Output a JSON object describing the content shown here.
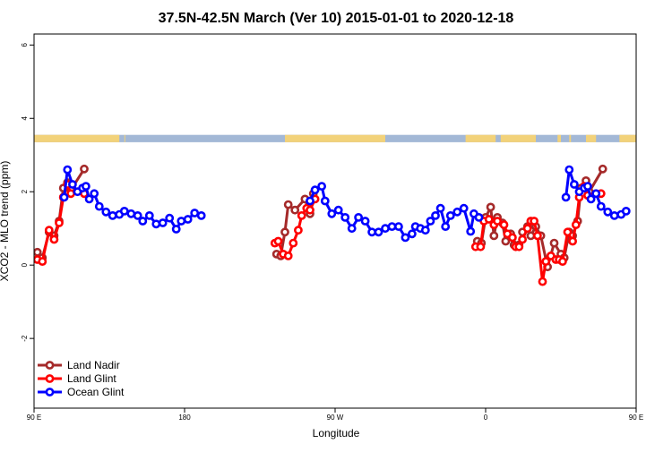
{
  "chart_data": {
    "type": "line",
    "title": "37.5N-42.5N March (Ver 10)   2015-01-01 to 2020-12-18",
    "xlabel": "Longitude",
    "ylabel": "XCO2 - MLO trend (ppm)",
    "xlim": [
      90,
      450
    ],
    "ylim": [
      -3.9,
      6.3
    ],
    "x_ticks": [
      {
        "value": 90,
        "label": "90 E"
      },
      {
        "value": 180,
        "label": "180"
      },
      {
        "value": 270,
        "label": "90 W"
      },
      {
        "value": 360,
        "label": "0"
      },
      {
        "value": 450,
        "label": "90 E"
      },
      {
        "value": 540,
        "label": "180"
      }
    ],
    "y_ticks": [
      {
        "value": -2,
        "label": "-2"
      },
      {
        "value": 0,
        "label": "0"
      },
      {
        "value": 2,
        "label": "2"
      },
      {
        "value": 4,
        "label": "4"
      },
      {
        "value": 6,
        "label": "6"
      }
    ],
    "legend_position": "bottom-left",
    "land_ocean_strip": {
      "y_range": [
        3.35,
        3.55
      ],
      "ocean_color": "#a3b8d6",
      "land_color": "#f2d27a",
      "land_x_ranges": [
        [
          90,
          141
        ],
        [
          144,
          144.5
        ],
        [
          240,
          300
        ],
        [
          348,
          366
        ],
        [
          369,
          390
        ],
        [
          403,
          405
        ],
        [
          410,
          411
        ],
        [
          420,
          426
        ],
        [
          440,
          491
        ],
        [
          494,
          494.5
        ],
        [
          500,
          504
        ]
      ]
    },
    "series": [
      {
        "name": "Land Nadir",
        "color": "#a52a2a",
        "segments": [
          [
            [
              92,
              0.35
            ],
            [
              95,
              0.2
            ],
            [
              99,
              0.9
            ],
            [
              102,
              0.8
            ],
            [
              105,
              1.2
            ],
            [
              107.5,
              2.1
            ],
            [
              110,
              2.25
            ],
            [
              112,
              2.05
            ],
            [
              120,
              2.62
            ]
          ],
          [
            [
              235,
              0.3
            ],
            [
              237.5,
              0.25
            ],
            [
              240,
              0.9
            ],
            [
              242,
              1.65
            ],
            [
              246,
              1.5
            ],
            [
              252,
              1.8
            ],
            [
              255,
              1.4
            ],
            [
              257,
              1.95
            ]
          ],
          [
            [
              355,
              0.65
            ],
            [
              357.5,
              0.6
            ],
            [
              360,
              1.3
            ],
            [
              363,
              1.58
            ],
            [
              365,
              0.8
            ],
            [
              367,
              1.3
            ],
            [
              370,
              1.15
            ],
            [
              372,
              0.65
            ],
            [
              375,
              0.85
            ],
            [
              377,
              0.55
            ],
            [
              380,
              0.55
            ],
            [
              382,
              0.9
            ],
            [
              385,
              1.05
            ],
            [
              387,
              0.8
            ],
            [
              390,
              1.05
            ],
            [
              393,
              0.8
            ],
            [
              397,
              -0.05
            ],
            [
              401,
              0.6
            ],
            [
              405,
              0.3
            ],
            [
              407,
              0.2
            ],
            [
              410,
              0.9
            ],
            [
              412,
              0.8
            ],
            [
              415,
              1.2
            ],
            [
              417,
              2.1
            ],
            [
              420,
              2.3
            ],
            [
              422,
              2.0
            ],
            [
              430,
              2.62
            ]
          ]
        ]
      },
      {
        "name": "Land Glint",
        "color": "#ff0000",
        "segments": [
          [
            [
              92,
              0.15
            ],
            [
              95,
              0.1
            ],
            [
              99,
              0.95
            ],
            [
              102,
              0.7
            ],
            [
              105,
              1.15
            ],
            [
              107.5,
              1.85
            ],
            [
              110,
              2.2
            ],
            [
              112,
              1.95
            ],
            [
              120,
              1.95
            ]
          ],
          [
            [
              234,
              0.6
            ],
            [
              236,
              0.65
            ],
            [
              239,
              0.3
            ],
            [
              242,
              0.25
            ],
            [
              245,
              0.6
            ],
            [
              248,
              0.95
            ],
            [
              250,
              1.35
            ],
            [
              253,
              1.55
            ],
            [
              255,
              1.5
            ],
            [
              258,
              1.8
            ]
          ],
          [
            [
              354,
              0.5
            ],
            [
              357,
              0.5
            ],
            [
              359,
              1.2
            ],
            [
              362,
              1.25
            ],
            [
              365,
              1.1
            ],
            [
              367,
              1.2
            ],
            [
              371,
              1.1
            ],
            [
              373,
              0.85
            ],
            [
              376,
              0.75
            ],
            [
              378,
              0.5
            ],
            [
              380,
              0.5
            ],
            [
              382,
              0.7
            ],
            [
              385,
              1.0
            ],
            [
              387,
              1.2
            ],
            [
              389,
              1.2
            ],
            [
              391,
              0.8
            ],
            [
              394,
              -0.45
            ],
            [
              396,
              0.1
            ],
            [
              399,
              0.25
            ],
            [
              402,
              0.15
            ],
            [
              404,
              0.15
            ],
            [
              406,
              0.1
            ],
            [
              409,
              0.9
            ],
            [
              412,
              0.65
            ],
            [
              414,
              1.1
            ],
            [
              416,
              1.85
            ],
            [
              419,
              2.15
            ],
            [
              421,
              1.9
            ],
            [
              429,
              1.95
            ]
          ]
        ]
      },
      {
        "name": "Ocean Glint",
        "color": "#0000ff",
        "segments": [
          [
            [
              108,
              1.85
            ],
            [
              110,
              2.6
            ],
            [
              113,
              2.2
            ],
            [
              116,
              2.0
            ],
            [
              119,
              2.1
            ],
            [
              121,
              2.15
            ],
            [
              123,
              1.8
            ],
            [
              126,
              1.95
            ],
            [
              129,
              1.6
            ],
            [
              133,
              1.45
            ],
            [
              137,
              1.35
            ],
            [
              141,
              1.38
            ],
            [
              144,
              1.47
            ],
            [
              148,
              1.4
            ],
            [
              152,
              1.35
            ],
            [
              155,
              1.2
            ],
            [
              159,
              1.35
            ],
            [
              163,
              1.12
            ],
            [
              167,
              1.15
            ],
            [
              171,
              1.28
            ],
            [
              175,
              0.98
            ],
            [
              178,
              1.2
            ],
            [
              182,
              1.25
            ],
            [
              186,
              1.42
            ],
            [
              190,
              1.35
            ]
          ],
          [
            [
              255,
              1.75
            ],
            [
              258,
              2.05
            ],
            [
              262,
              2.15
            ],
            [
              264,
              1.75
            ],
            [
              268,
              1.4
            ],
            [
              272,
              1.5
            ],
            [
              276,
              1.3
            ],
            [
              280,
              1.0
            ],
            [
              284,
              1.3
            ],
            [
              288,
              1.2
            ],
            [
              292,
              0.9
            ],
            [
              296,
              0.9
            ],
            [
              300,
              1.0
            ],
            [
              304,
              1.05
            ],
            [
              308,
              1.05
            ],
            [
              312,
              0.75
            ],
            [
              316,
              0.85
            ],
            [
              318,
              1.05
            ],
            [
              321,
              1.0
            ],
            [
              324,
              0.95
            ],
            [
              327,
              1.2
            ],
            [
              330,
              1.35
            ],
            [
              333,
              1.55
            ],
            [
              336,
              1.05
            ],
            [
              339,
              1.35
            ],
            [
              343,
              1.45
            ],
            [
              347,
              1.55
            ],
            [
              351,
              0.92
            ],
            [
              353,
              1.4
            ],
            [
              356,
              1.3
            ]
          ],
          [
            [
              408,
              1.85
            ],
            [
              410,
              2.6
            ],
            [
              413,
              2.2
            ],
            [
              416,
              2.0
            ],
            [
              419,
              2.1
            ],
            [
              421,
              2.15
            ],
            [
              423,
              1.8
            ],
            [
              426,
              1.95
            ],
            [
              429,
              1.6
            ],
            [
              433,
              1.45
            ],
            [
              437,
              1.35
            ],
            [
              441,
              1.38
            ],
            [
              444,
              1.47
            ]
          ]
        ]
      }
    ]
  }
}
